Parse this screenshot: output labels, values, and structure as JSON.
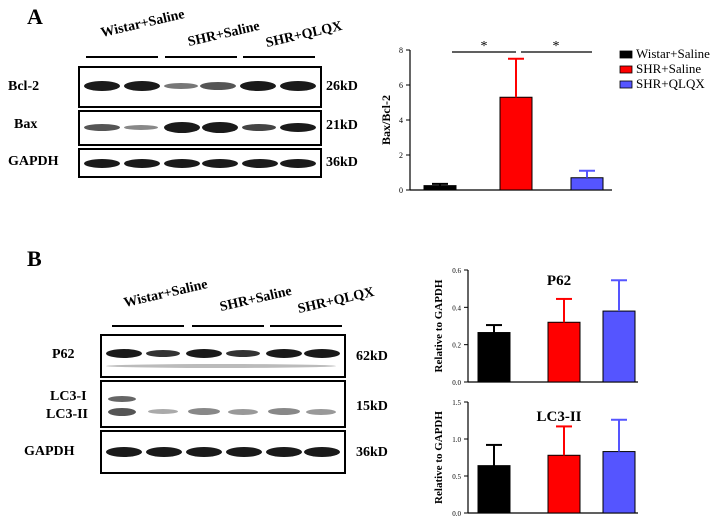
{
  "panelA": {
    "letter": "A",
    "groups": [
      "Wistar+Saline",
      "SHR+Saline",
      "SHR+QLQX"
    ],
    "rows": [
      {
        "label": "Bcl-2",
        "mw": "26kD"
      },
      {
        "label": "Bax",
        "mw": "21kD"
      },
      {
        "label": "GAPDH",
        "mw": "36kD"
      }
    ]
  },
  "panelB": {
    "letter": "B",
    "groups": [
      "Wistar+Saline",
      "SHR+Saline",
      "SHR+QLQX"
    ],
    "rows": [
      {
        "label": "P62",
        "mw": "62kD"
      },
      {
        "label": "LC3-I",
        "label2": "LC3-II",
        "mw": "15kD"
      },
      {
        "label": "GAPDH",
        "mw": "36kD"
      }
    ]
  },
  "legend": {
    "items": [
      {
        "name": "Wistar+Saline",
        "color": "#000000"
      },
      {
        "name": "SHR+Saline",
        "color": "#ff0000"
      },
      {
        "name": "SHR+QLQX",
        "color": "#5555ff"
      }
    ]
  },
  "chart_data": [
    {
      "type": "bar",
      "ylabel": "Bax/Bcl-2",
      "categories": [
        "Wistar+Saline",
        "SHR+Saline",
        "SHR+QLQX"
      ],
      "values": [
        0.25,
        5.3,
        0.7
      ],
      "errors": [
        0.1,
        2.2,
        0.4
      ],
      "colors": [
        "#000000",
        "#ff0000",
        "#5555ff"
      ],
      "ylim": [
        0,
        8
      ],
      "yticks": [
        "0",
        "2",
        "4",
        "6",
        "8"
      ],
      "annotations": [
        "*",
        "*"
      ]
    },
    {
      "type": "bar",
      "title": "P62",
      "ylabel": "Relative to GAPDH",
      "categories": [
        "Wistar+Saline",
        "SHR+Saline",
        "SHR+QLQX"
      ],
      "values": [
        0.265,
        0.32,
        0.38
      ],
      "errors": [
        0.04,
        0.125,
        0.165
      ],
      "colors": [
        "#000000",
        "#ff0000",
        "#5555ff"
      ],
      "ylim": [
        0,
        0.6
      ],
      "yticks": [
        "0.0",
        "0.2",
        "0.4",
        "0.6"
      ]
    },
    {
      "type": "bar",
      "title": "LC3-II",
      "ylabel": "Relative to GAPDH",
      "categories": [
        "Wistar+Saline",
        "SHR+Saline",
        "SHR+QLQX"
      ],
      "values": [
        0.64,
        0.78,
        0.83
      ],
      "errors": [
        0.28,
        0.39,
        0.43
      ],
      "colors": [
        "#000000",
        "#ff0000",
        "#5555ff"
      ],
      "ylim": [
        0,
        1.5
      ],
      "yticks": [
        "0.0",
        "0.5",
        "1.0",
        "1.5"
      ]
    }
  ]
}
